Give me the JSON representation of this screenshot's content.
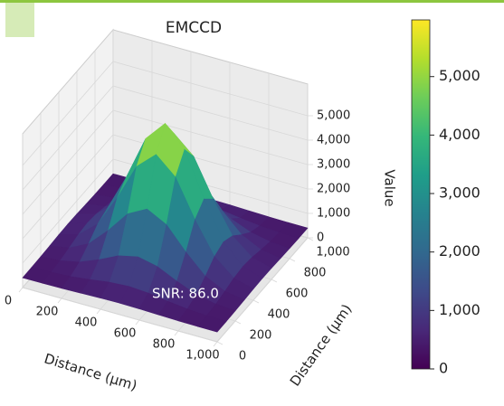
{
  "chart_data": {
    "type": "surface3d",
    "title": "EMCCD",
    "annotation": "SNR: 86.0",
    "xlabel": "Distance (µm)",
    "ylabel": "Distance (µm)",
    "zlabel": "Value",
    "colormap": "viridis",
    "x": [
      0,
      100,
      200,
      300,
      400,
      500,
      600,
      700,
      800,
      900,
      1000
    ],
    "y": [
      0,
      100,
      200,
      300,
      400,
      500,
      600,
      700,
      800,
      900,
      1000
    ],
    "z": [
      [
        401,
        404,
        415,
        435,
        459,
        470,
        459,
        435,
        415,
        404,
        401
      ],
      [
        404,
        421,
        470,
        566,
        680,
        733,
        680,
        566,
        470,
        421,
        404
      ],
      [
        415,
        470,
        636,
        959,
        1340,
        1518,
        1340,
        959,
        636,
        470,
        415
      ],
      [
        435,
        566,
        959,
        1725,
        2629,
        3050,
        2629,
        1725,
        959,
        566,
        435
      ],
      [
        459,
        680,
        1340,
        2629,
        4148,
        4857,
        4148,
        2629,
        1340,
        680,
        459
      ],
      [
        470,
        733,
        1518,
        3050,
        4857,
        5700,
        4857,
        3050,
        1518,
        733,
        470
      ],
      [
        459,
        680,
        1340,
        2629,
        4148,
        4857,
        4148,
        2629,
        1340,
        680,
        459
      ],
      [
        435,
        566,
        959,
        1725,
        2629,
        3050,
        2629,
        1725,
        959,
        566,
        435
      ],
      [
        415,
        470,
        636,
        959,
        1340,
        1518,
        1340,
        959,
        636,
        470,
        415
      ],
      [
        404,
        421,
        470,
        566,
        680,
        733,
        680,
        566,
        470,
        421,
        404
      ],
      [
        401,
        404,
        415,
        435,
        459,
        470,
        459,
        435,
        415,
        404,
        401
      ]
    ],
    "xlim": [
      0,
      1000
    ],
    "xticks": [
      0,
      200,
      400,
      600,
      800,
      {
        "value": 1000,
        "label": "1,000"
      }
    ],
    "ylim": [
      0,
      1000
    ],
    "yticks": [
      0,
      200,
      400,
      600,
      800,
      {
        "value": 1000,
        "label": "1,000"
      }
    ],
    "zlim": [
      0,
      6300
    ],
    "zticks": [
      0,
      {
        "value": 1000,
        "label": "1,000"
      },
      {
        "value": 2000,
        "label": "2,000"
      },
      {
        "value": 3000,
        "label": "3,000"
      },
      {
        "value": 4000,
        "label": "4,000"
      },
      {
        "value": 5000,
        "label": "5,000"
      }
    ],
    "clim": [
      0,
      5970
    ],
    "cticks": [
      0,
      {
        "value": 1000,
        "label": "1,000"
      },
      {
        "value": 2000,
        "label": "2,000"
      },
      {
        "value": 3000,
        "label": "3,000"
      },
      {
        "value": 4000,
        "label": "4,000"
      },
      {
        "value": 5000,
        "label": "5,000"
      }
    ],
    "grid": true
  }
}
